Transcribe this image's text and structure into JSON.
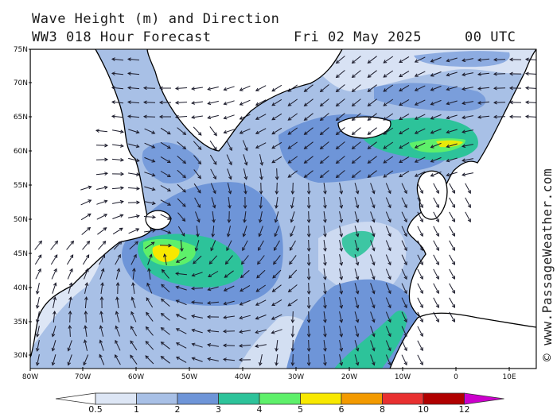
{
  "header": {
    "title": "Wave Height (m) and Direction",
    "subtitle": "WW3 018 Hour Forecast",
    "date": "Fri 02 May 2025",
    "time": "00 UTC"
  },
  "watermark": "© www.PassageWeather.com",
  "axes": {
    "lat_labels": [
      "75N",
      "70N",
      "65N",
      "60N",
      "55N",
      "50N",
      "45N",
      "40N",
      "35N",
      "30N"
    ],
    "lon_labels": [
      "80W",
      "70W",
      "60W",
      "50W",
      "40W",
      "30W",
      "20W",
      "10W",
      "0",
      "10E"
    ]
  },
  "legend": {
    "unit": "m",
    "thresholds": [
      "0.5",
      "1",
      "2",
      "3",
      "4",
      "5",
      "6",
      "8",
      "10",
      "12"
    ],
    "colors": [
      "#ffffff",
      "#dde6f5",
      "#a8c0e6",
      "#6e95d8",
      "#2dc39a",
      "#5ef06a",
      "#f8e800",
      "#f39a00",
      "#e83030",
      "#b00000",
      "#cc00cc"
    ]
  },
  "map_colors": {
    "land": "#ffffff",
    "coast": "#000000",
    "arrow": "#1a1a2a"
  }
}
